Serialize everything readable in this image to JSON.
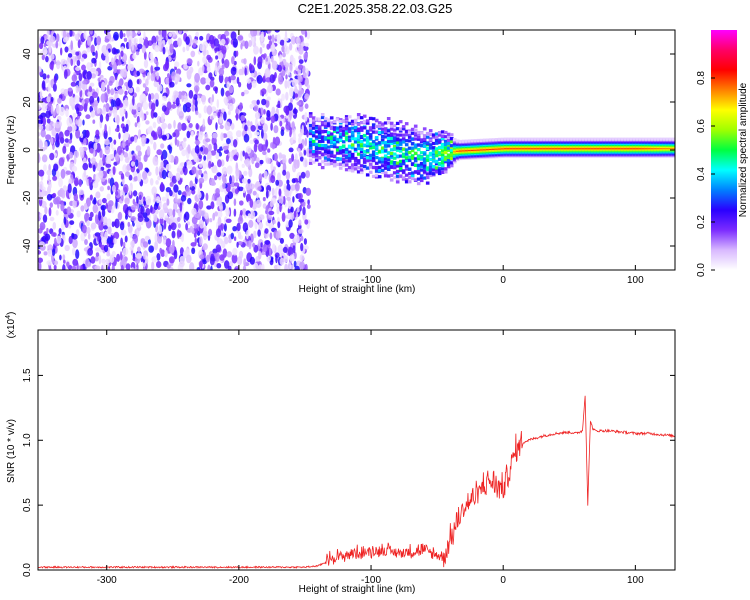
{
  "title": "C2E1.2025.358.22.03.G25",
  "chart_data": [
    {
      "type": "heatmap",
      "xlabel": "Height of straight line (km)",
      "ylabel": "Frequency (Hz)",
      "xlim": [
        -352,
        130
      ],
      "ylim": [
        -50,
        50
      ],
      "xticks": [
        -300,
        -200,
        -100,
        0,
        100
      ],
      "yticks": [
        -40,
        -20,
        0,
        20,
        40
      ],
      "grid": false,
      "colorbar": {
        "label": "Normalized spectral amplitude",
        "range": [
          0.0,
          1.0
        ],
        "ticks": [
          "0.0",
          "0.2",
          "0.4",
          "0.6",
          "0.8"
        ],
        "colormap": [
          "#ffffff",
          "#d8b8ff",
          "#7b2cff",
          "#2a00ff",
          "#0080ff",
          "#00ffff",
          "#00ff40",
          "#a0ff00",
          "#ffff00",
          "#ff8000",
          "#ff0000",
          "#ff0066",
          "#ff00ff"
        ]
      },
      "noise_region_x": [
        -352,
        -147
      ],
      "band_profile": [
        {
          "x": -147,
          "center": 5,
          "half_width": 10,
          "amplitude": 0.3
        },
        {
          "x": -120,
          "center": 3,
          "half_width": 11,
          "amplitude": 0.4
        },
        {
          "x": -100,
          "center": 1,
          "half_width": 12,
          "amplitude": 0.42
        },
        {
          "x": -80,
          "center": -1,
          "half_width": 12,
          "amplitude": 0.45
        },
        {
          "x": -60,
          "center": -3,
          "half_width": 11,
          "amplitude": 0.45
        },
        {
          "x": -45,
          "center": -1,
          "half_width": 8,
          "amplitude": 0.55
        },
        {
          "x": -35,
          "center": 0,
          "half_width": 4,
          "amplitude": 0.8
        },
        {
          "x": 0,
          "center": 1,
          "half_width": 4,
          "amplitude": 0.8
        },
        {
          "x": 50,
          "center": 1,
          "half_width": 4,
          "amplitude": 0.8
        },
        {
          "x": 100,
          "center": 1,
          "half_width": 4,
          "amplitude": 0.8
        },
        {
          "x": 130,
          "center": 1,
          "half_width": 4,
          "amplitude": 0.75
        }
      ]
    },
    {
      "type": "line",
      "xlabel": "Height of straight line (km)",
      "ylabel": "SNR (10 * v/v)",
      "yscale_label": "(x10",
      "yscale_exponent": "4",
      "xlim": [
        -352,
        130
      ],
      "ylim": [
        0,
        1.85
      ],
      "xticks": [
        -300,
        -200,
        -100,
        0,
        100
      ],
      "yticks": [
        "0.0",
        "0.5",
        "1.0",
        "1.5"
      ],
      "color": "#ee2222",
      "grid": false,
      "series": [
        {
          "x": [
            -352,
            -300,
            -250,
            -200,
            -170,
            -150,
            -140,
            -130,
            -115,
            -100,
            -90,
            -80,
            -70,
            -60,
            -50,
            -45,
            -40,
            -35,
            -30,
            -25,
            -20,
            -15,
            -10,
            -5,
            0,
            5,
            10,
            15,
            20,
            30,
            40,
            50,
            55,
            60,
            62,
            64,
            66,
            68,
            70,
            80,
            90,
            100,
            110,
            120,
            130
          ],
          "y": [
            0.02,
            0.02,
            0.02,
            0.02,
            0.02,
            0.02,
            0.03,
            0.08,
            0.11,
            0.13,
            0.14,
            0.12,
            0.13,
            0.14,
            0.1,
            0.08,
            0.2,
            0.34,
            0.45,
            0.5,
            0.55,
            0.62,
            0.66,
            0.62,
            0.6,
            0.75,
            0.9,
            0.98,
            1.0,
            1.03,
            1.05,
            1.06,
            1.05,
            1.07,
            1.35,
            0.5,
            1.15,
            1.08,
            1.07,
            1.07,
            1.06,
            1.05,
            1.05,
            1.04,
            1.03
          ]
        }
      ]
    }
  ]
}
